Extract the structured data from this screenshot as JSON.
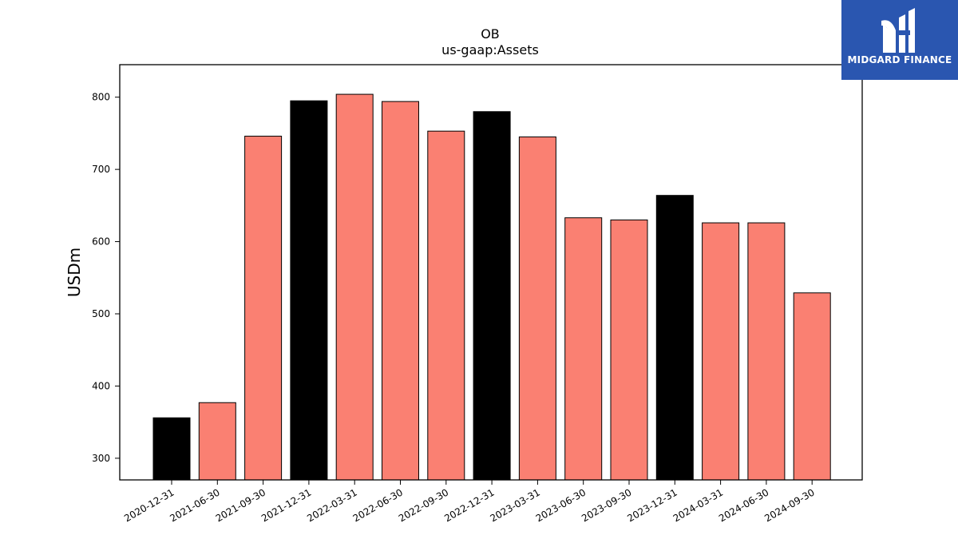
{
  "brand": {
    "name": "MIDGARD FINANCE",
    "icon": "midgard-logo-icon",
    "background": "#2a56b0"
  },
  "chart_data": {
    "type": "bar",
    "title": "OB",
    "subtitle": "us-gaap:Assets",
    "xlabel": "",
    "ylabel": "USDm",
    "ylim": [
      270,
      845
    ],
    "yticks": [
      300,
      400,
      500,
      600,
      700,
      800
    ],
    "grid": false,
    "legend": "none",
    "categories": [
      "2020-12-31",
      "2021-06-30",
      "2021-09-30",
      "2021-12-31",
      "2022-03-31",
      "2022-06-30",
      "2022-09-30",
      "2022-12-31",
      "2023-03-31",
      "2023-06-30",
      "2023-09-30",
      "2023-12-31",
      "2024-03-31",
      "2024-06-30",
      "2024-09-30"
    ],
    "values": [
      356,
      377,
      746,
      795,
      804,
      794,
      753,
      780,
      745,
      633,
      630,
      664,
      626,
      626,
      529
    ],
    "bar_colors": [
      "#000000",
      "#fa8072",
      "#fa8072",
      "#000000",
      "#fa8072",
      "#fa8072",
      "#fa8072",
      "#000000",
      "#fa8072",
      "#fa8072",
      "#fa8072",
      "#000000",
      "#fa8072",
      "#fa8072",
      "#fa8072"
    ],
    "edge_color": "#000000"
  }
}
